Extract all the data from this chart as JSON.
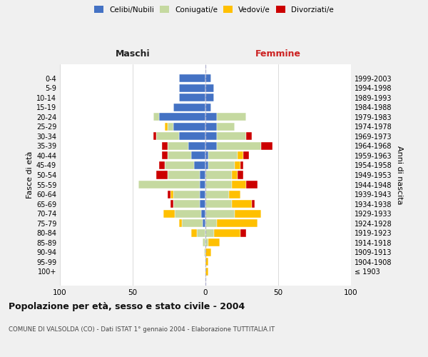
{
  "age_groups": [
    "100+",
    "95-99",
    "90-94",
    "85-89",
    "80-84",
    "75-79",
    "70-74",
    "65-69",
    "60-64",
    "55-59",
    "50-54",
    "45-49",
    "40-44",
    "35-39",
    "30-34",
    "25-29",
    "20-24",
    "15-19",
    "10-14",
    "5-9",
    "0-4"
  ],
  "birth_years": [
    "≤ 1903",
    "1904-1908",
    "1909-1913",
    "1914-1918",
    "1919-1923",
    "1924-1928",
    "1929-1933",
    "1934-1938",
    "1939-1943",
    "1944-1948",
    "1949-1953",
    "1954-1958",
    "1959-1963",
    "1964-1968",
    "1969-1973",
    "1974-1978",
    "1979-1983",
    "1984-1988",
    "1989-1993",
    "1994-1998",
    "1999-2003"
  ],
  "male": {
    "celibi": [
      0,
      0,
      0,
      0,
      0,
      2,
      3,
      4,
      4,
      4,
      4,
      8,
      10,
      12,
      18,
      22,
      32,
      22,
      18,
      18,
      18
    ],
    "coniugati": [
      0,
      0,
      1,
      2,
      6,
      14,
      18,
      18,
      18,
      42,
      22,
      20,
      16,
      14,
      16,
      4,
      4,
      0,
      0,
      0,
      0
    ],
    "vedovi": [
      0,
      0,
      0,
      0,
      4,
      2,
      8,
      0,
      2,
      0,
      0,
      0,
      0,
      0,
      0,
      2,
      0,
      0,
      0,
      0,
      0
    ],
    "divorziati": [
      0,
      0,
      0,
      0,
      0,
      0,
      0,
      2,
      2,
      0,
      8,
      4,
      4,
      4,
      2,
      0,
      0,
      0,
      0,
      0,
      0
    ]
  },
  "female": {
    "nubili": [
      0,
      0,
      0,
      0,
      0,
      0,
      0,
      0,
      0,
      0,
      0,
      2,
      2,
      8,
      8,
      8,
      8,
      4,
      6,
      6,
      4
    ],
    "coniugate": [
      0,
      0,
      0,
      2,
      6,
      8,
      20,
      18,
      16,
      18,
      18,
      18,
      20,
      30,
      20,
      12,
      20,
      0,
      0,
      0,
      0
    ],
    "vedove": [
      2,
      2,
      4,
      8,
      18,
      28,
      18,
      14,
      8,
      10,
      4,
      4,
      4,
      0,
      0,
      0,
      0,
      0,
      0,
      0,
      0
    ],
    "divorziate": [
      0,
      0,
      0,
      0,
      4,
      0,
      0,
      2,
      0,
      8,
      4,
      2,
      4,
      8,
      4,
      0,
      0,
      0,
      0,
      0,
      0
    ]
  },
  "colors": {
    "celibi": "#4472c4",
    "coniugati": "#c5d9a0",
    "vedovi": "#ffc000",
    "divorziati": "#cc0000"
  },
  "title": "Popolazione per età, sesso e stato civile - 2004",
  "subtitle": "COMUNE DI VALSOLDA (CO) - Dati ISTAT 1° gennaio 2004 - Elaborazione TUTTITALIA.IT",
  "xlabel_left": "Maschi",
  "xlabel_right": "Femmine",
  "ylabel_left": "Fasce di età",
  "ylabel_right": "Anni di nascita",
  "xlim": 100,
  "background_color": "#f0f0f0",
  "plot_bg": "#ffffff"
}
